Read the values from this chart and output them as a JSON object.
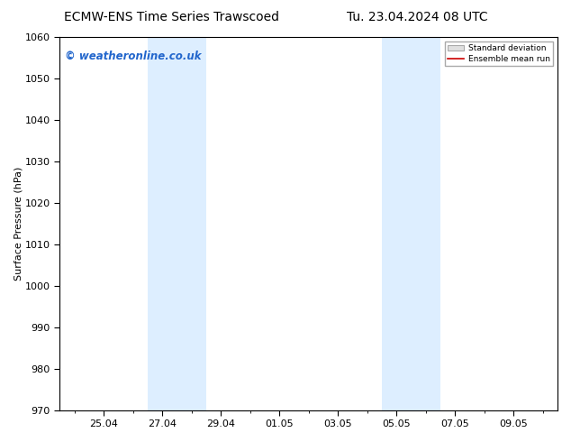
{
  "title_left": "ECMW-ENS Time Series Trawscoed",
  "title_right": "Tu. 23.04.2024 08 UTC",
  "ylabel": "Surface Pressure (hPa)",
  "ylim": [
    970,
    1060
  ],
  "yticks": [
    970,
    980,
    990,
    1000,
    1010,
    1020,
    1030,
    1040,
    1050,
    1060
  ],
  "xtick_labels": [
    "25.04",
    "27.04",
    "29.04",
    "01.05",
    "03.05",
    "05.05",
    "07.05",
    "09.05"
  ],
  "xtick_positions": [
    2,
    4,
    6,
    8,
    10,
    12,
    14,
    16
  ],
  "xlim": [
    0.5,
    17.5
  ],
  "shaded_bands": [
    {
      "x_start": 3.5,
      "x_end": 5.5
    },
    {
      "x_start": 11.5,
      "x_end": 13.5
    }
  ],
  "shaded_color": "#ddeeff",
  "watermark_text": "© weatheronline.co.uk",
  "watermark_color": "#2266cc",
  "legend_std_label": "Standard deviation",
  "legend_mean_label": "Ensemble mean run",
  "legend_std_facecolor": "#e0e0e0",
  "legend_std_edgecolor": "#aaaaaa",
  "legend_mean_color": "#cc0000",
  "bg_color": "#ffffff",
  "plot_bg_color": "#ffffff",
  "title_fontsize": 10,
  "axis_label_fontsize": 8,
  "tick_fontsize": 8,
  "watermark_fontsize": 8.5
}
